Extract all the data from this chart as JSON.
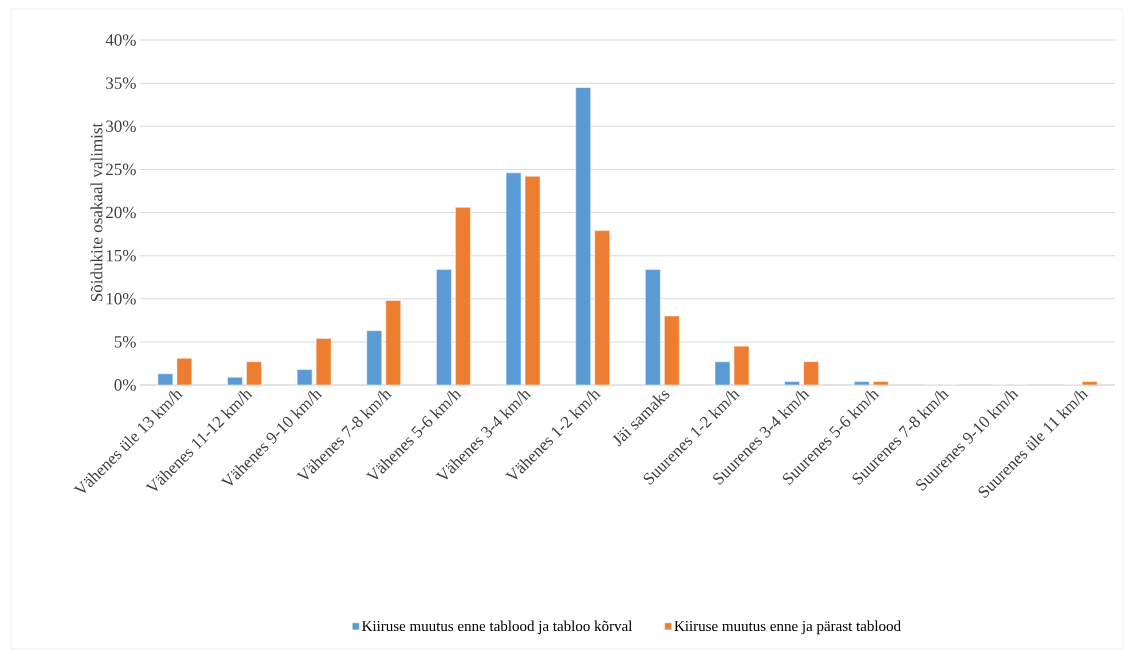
{
  "chart_data": {
    "type": "bar",
    "ylabel": "Sõidukite osakaal valimist",
    "categories": [
      "Vähenes üle 13 km/h",
      "Vähenes 11-12 km/h",
      "Vähenes 9-10 km/h",
      "Vähenes 7-8 km/h",
      "Vähenes 5-6 km/h",
      "Vähenes 3-4 km/h",
      "Vähenes 1-2 km/h",
      "Jäi samaks",
      "Suurenes 1-2 km/h",
      "Suurenes 3-4 km/h",
      "Suurenes 5-6 km/h",
      "Suurenes 7-8 km/h",
      "Suurenes 9-10 km/h",
      "Suurenes üle 11 km/h"
    ],
    "series": [
      {
        "name": "Kiiruse muutus enne tablood ja tabloo kõrval",
        "color": "#5b9bd5",
        "values": [
          1.3,
          0.9,
          1.8,
          6.3,
          13.4,
          24.6,
          34.5,
          13.4,
          2.7,
          0.4,
          0.4,
          0,
          0,
          0
        ]
      },
      {
        "name": "Kiiruse muutus enne ja pärast tablood",
        "color": "#ed7d31",
        "values": [
          3.1,
          2.7,
          5.4,
          9.8,
          20.6,
          24.2,
          17.9,
          8.0,
          4.5,
          2.7,
          0.4,
          0,
          0,
          0.4
        ]
      }
    ],
    "ylim": [
      0,
      40
    ],
    "yticks": [
      {
        "value": 0,
        "label": "0%"
      },
      {
        "value": 5,
        "label": "5%"
      },
      {
        "value": 10,
        "label": "10%"
      },
      {
        "value": 15,
        "label": "15%"
      },
      {
        "value": 20,
        "label": "20%"
      },
      {
        "value": 25,
        "label": "25%"
      },
      {
        "value": 30,
        "label": "30%"
      },
      {
        "value": 35,
        "label": "35%"
      },
      {
        "value": 40,
        "label": "40%"
      }
    ],
    "grid": "y",
    "legend": "bottom"
  }
}
